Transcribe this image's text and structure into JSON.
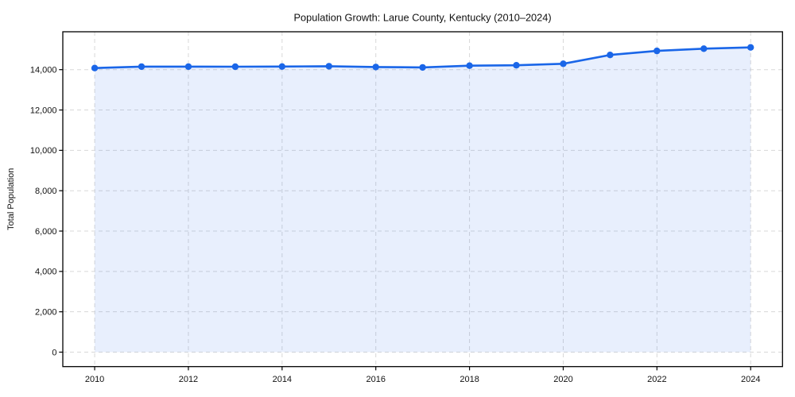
{
  "chart_data": {
    "type": "area",
    "title": "Population Growth: Larue County, Kentucky (2010–2024)",
    "xlabel": "",
    "ylabel": "Total Population",
    "x": [
      2010,
      2011,
      2012,
      2013,
      2014,
      2015,
      2016,
      2017,
      2018,
      2019,
      2020,
      2021,
      2022,
      2023,
      2024
    ],
    "values": [
      14080,
      14150,
      14150,
      14145,
      14155,
      14170,
      14130,
      14110,
      14195,
      14215,
      14290,
      14730,
      14930,
      15040,
      15100
    ],
    "series_name": "Total Population",
    "xticks": [
      2010,
      2012,
      2014,
      2016,
      2018,
      2020,
      2022,
      2024
    ],
    "yticks": [
      0,
      2000,
      4000,
      6000,
      8000,
      10000,
      12000,
      14000
    ],
    "xlim": [
      2009.32,
      2024.68
    ],
    "ylim": [
      -716,
      15877
    ],
    "grid": true,
    "grid_style": "dashed",
    "legend": false,
    "fill_baseline": 0,
    "colors": {
      "line": "#1a66e8",
      "marker": "#1a66e8",
      "fill": "rgba(26,102,232,0.10)",
      "gridline": "#d8d8d8",
      "spine": "#000000",
      "text": "#111111",
      "background": "#ffffff"
    }
  }
}
